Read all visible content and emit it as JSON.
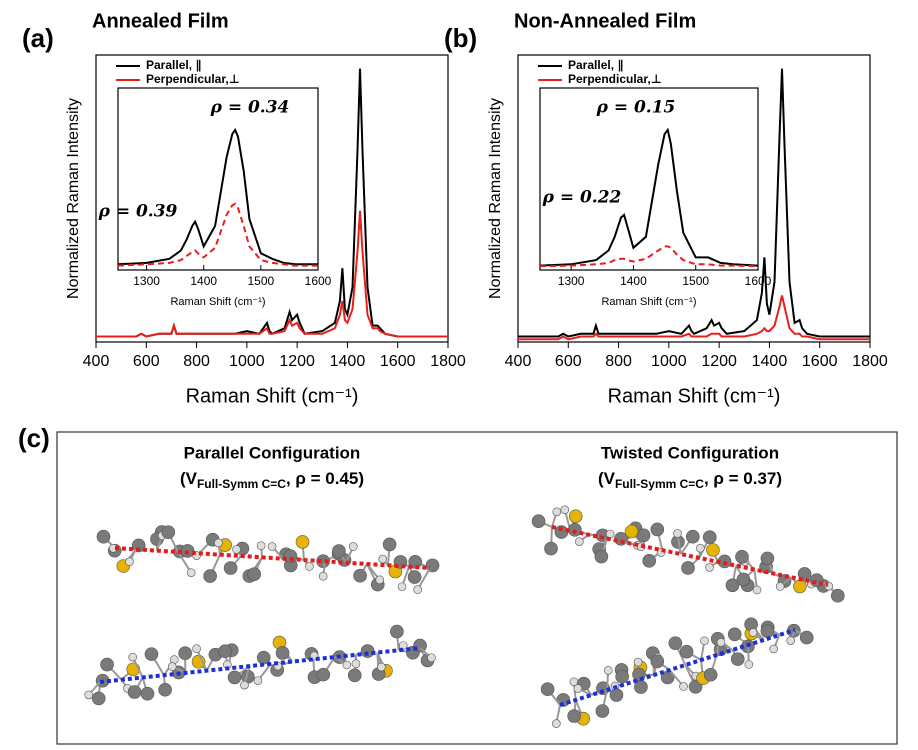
{
  "chart_data": [
    {
      "type": "line",
      "panel_label": "(a)",
      "title": "Annealed Film",
      "xlabel": "Raman Shift (cm⁻¹)",
      "ylabel": "Normalized Raman Intensity",
      "xlim": [
        400,
        1800
      ],
      "xticks": [
        400,
        600,
        800,
        1000,
        1200,
        1400,
        1600,
        1800
      ],
      "ylim": [
        0,
        1.05
      ],
      "x": [
        400,
        560,
        580,
        600,
        650,
        700,
        710,
        720,
        800,
        850,
        900,
        950,
        1000,
        1050,
        1080,
        1090,
        1100,
        1150,
        1170,
        1180,
        1200,
        1210,
        1230,
        1300,
        1350,
        1370,
        1380,
        1390,
        1400,
        1420,
        1440,
        1450,
        1460,
        1480,
        1500,
        1520,
        1530,
        1550,
        1600,
        1700,
        1800
      ],
      "series": [
        {
          "name": "Parallel, ∥",
          "color": "#000000",
          "values": [
            0.02,
            0.02,
            0.03,
            0.02,
            0.03,
            0.03,
            0.06,
            0.03,
            0.03,
            0.03,
            0.03,
            0.03,
            0.04,
            0.03,
            0.07,
            0.04,
            0.03,
            0.05,
            0.11,
            0.08,
            0.1,
            0.07,
            0.03,
            0.04,
            0.07,
            0.15,
            0.27,
            0.12,
            0.1,
            0.2,
            0.7,
            1.0,
            0.7,
            0.2,
            0.06,
            0.06,
            0.05,
            0.03,
            0.02,
            0.02,
            0.02
          ]
        },
        {
          "name": "Perpendicular,⊥",
          "color": "#e8201c",
          "values": [
            0.02,
            0.02,
            0.03,
            0.02,
            0.03,
            0.03,
            0.06,
            0.03,
            0.03,
            0.03,
            0.03,
            0.03,
            0.03,
            0.03,
            0.05,
            0.03,
            0.03,
            0.04,
            0.08,
            0.06,
            0.07,
            0.05,
            0.03,
            0.03,
            0.05,
            0.1,
            0.15,
            0.08,
            0.07,
            0.12,
            0.33,
            0.48,
            0.33,
            0.1,
            0.05,
            0.05,
            0.04,
            0.03,
            0.02,
            0.02,
            0.02
          ]
        }
      ],
      "inset": {
        "xlabel": "Raman Shift (cm⁻¹)",
        "xlim": [
          1250,
          1600
        ],
        "xticks": [
          1300,
          1400,
          1500,
          1600
        ],
        "ylim": [
          0,
          1.05
        ],
        "x": [
          1250,
          1300,
          1340,
          1360,
          1370,
          1380,
          1385,
          1390,
          1400,
          1420,
          1440,
          1450,
          1455,
          1460,
          1470,
          1480,
          1500,
          1520,
          1540,
          1560,
          1600
        ],
        "series": [
          {
            "color": "#000000",
            "dash": false,
            "values": [
              0.02,
              0.03,
              0.06,
              0.12,
              0.2,
              0.3,
              0.33,
              0.28,
              0.15,
              0.3,
              0.8,
              0.97,
              1.0,
              0.95,
              0.7,
              0.35,
              0.1,
              0.06,
              0.03,
              0.02,
              0.02
            ]
          },
          {
            "color": "#e8201c",
            "dash": true,
            "values": [
              0.01,
              0.02,
              0.03,
              0.05,
              0.08,
              0.11,
              0.12,
              0.1,
              0.07,
              0.14,
              0.38,
              0.45,
              0.46,
              0.43,
              0.3,
              0.15,
              0.05,
              0.03,
              0.02,
              0.01,
              0.01
            ]
          }
        ],
        "annotations": [
          "ρ = 0.34",
          "ρ = 0.39"
        ]
      }
    },
    {
      "type": "line",
      "panel_label": "(b)",
      "title": "Non-Annealed Film",
      "xlabel": "Raman Shift (cm⁻¹)",
      "ylabel": "Normalized Raman Intensity",
      "xlim": [
        400,
        1800
      ],
      "xticks": [
        400,
        600,
        800,
        1000,
        1200,
        1400,
        1600,
        1800
      ],
      "ylim": [
        0,
        1.05
      ],
      "x": [
        400,
        560,
        580,
        600,
        650,
        700,
        710,
        720,
        800,
        850,
        900,
        950,
        1000,
        1050,
        1080,
        1090,
        1100,
        1150,
        1170,
        1180,
        1200,
        1210,
        1230,
        1300,
        1350,
        1370,
        1380,
        1390,
        1400,
        1420,
        1440,
        1450,
        1460,
        1480,
        1500,
        1520,
        1530,
        1550,
        1600,
        1700,
        1800
      ],
      "series": [
        {
          "name": "Parallel, ∥",
          "color": "#000000",
          "values": [
            0.02,
            0.02,
            0.03,
            0.02,
            0.03,
            0.03,
            0.06,
            0.03,
            0.03,
            0.03,
            0.03,
            0.03,
            0.04,
            0.03,
            0.06,
            0.04,
            0.03,
            0.05,
            0.08,
            0.06,
            0.07,
            0.05,
            0.03,
            0.04,
            0.08,
            0.18,
            0.31,
            0.14,
            0.1,
            0.22,
            0.75,
            1.0,
            0.72,
            0.22,
            0.07,
            0.08,
            0.05,
            0.03,
            0.02,
            0.02,
            0.02
          ]
        },
        {
          "name": "Perpendicular,⊥",
          "color": "#e8201c",
          "values": [
            0.01,
            0.01,
            0.02,
            0.01,
            0.02,
            0.02,
            0.03,
            0.02,
            0.02,
            0.02,
            0.02,
            0.02,
            0.02,
            0.02,
            0.03,
            0.02,
            0.02,
            0.02,
            0.03,
            0.03,
            0.03,
            0.02,
            0.02,
            0.02,
            0.03,
            0.04,
            0.05,
            0.04,
            0.04,
            0.06,
            0.13,
            0.17,
            0.13,
            0.05,
            0.03,
            0.03,
            0.02,
            0.02,
            0.01,
            0.01,
            0.01
          ]
        }
      ],
      "inset": {
        "xlabel": "Raman Shift (cm⁻¹)",
        "xlim": [
          1250,
          1600
        ],
        "xticks": [
          1300,
          1400,
          1500,
          1600
        ],
        "ylim": [
          0,
          1.05
        ],
        "x": [
          1250,
          1300,
          1340,
          1360,
          1370,
          1380,
          1385,
          1390,
          1400,
          1420,
          1440,
          1450,
          1455,
          1460,
          1470,
          1480,
          1500,
          1520,
          1540,
          1560,
          1600
        ],
        "series": [
          {
            "color": "#000000",
            "dash": false,
            "values": [
              0.01,
              0.02,
              0.05,
              0.12,
              0.22,
              0.36,
              0.38,
              0.3,
              0.14,
              0.22,
              0.75,
              0.97,
              1.0,
              0.9,
              0.55,
              0.25,
              0.07,
              0.07,
              0.03,
              0.02,
              0.01
            ]
          },
          {
            "color": "#e8201c",
            "dash": true,
            "values": [
              0.005,
              0.01,
              0.02,
              0.03,
              0.05,
              0.06,
              0.06,
              0.05,
              0.04,
              0.06,
              0.12,
              0.15,
              0.15,
              0.14,
              0.09,
              0.05,
              0.02,
              0.02,
              0.01,
              0.01,
              0.005
            ]
          }
        ],
        "annotations": [
          "ρ = 0.15",
          "ρ = 0.22"
        ]
      }
    }
  ],
  "panel_c": {
    "label": "(c)",
    "configurations": [
      {
        "title": "Parallel Configuration",
        "prefix": "(V",
        "subscript": "Full-Symm C=C",
        "suffix": ", ρ = 0.45)"
      },
      {
        "title": "Twisted Configuration",
        "prefix": "(V",
        "subscript": "Full-Symm C=C",
        "suffix": ", ρ = 0.37)"
      }
    ]
  }
}
